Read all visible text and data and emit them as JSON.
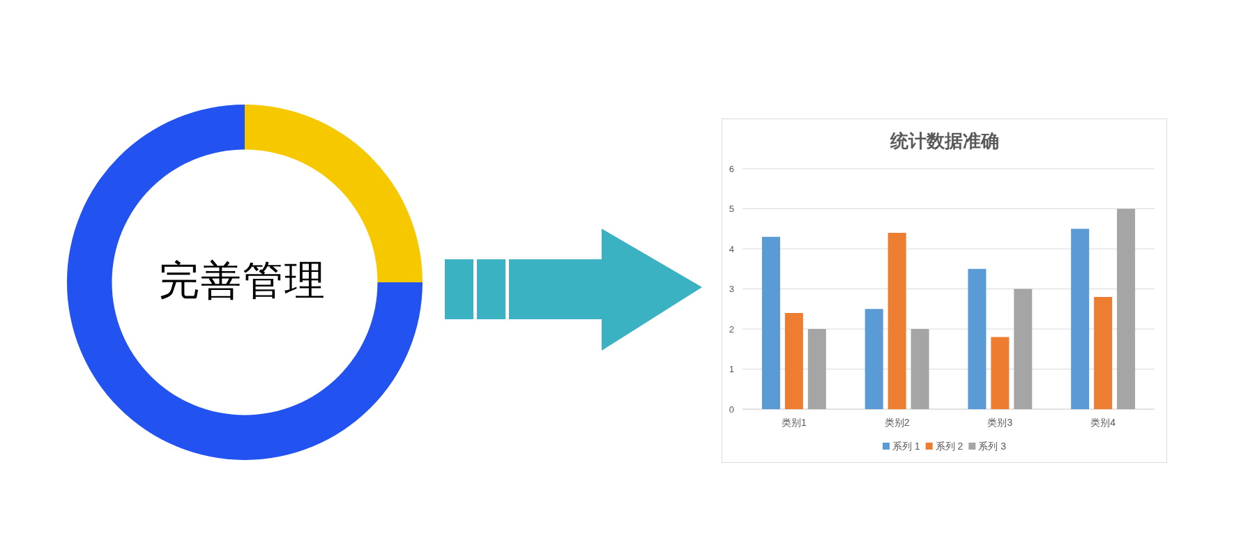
{
  "chart_data": [
    {
      "type": "donut",
      "title": "完善管理",
      "categories": [
        null,
        null,
        null,
        null
      ],
      "values": [
        25,
        25,
        25,
        25
      ],
      "colors": [
        "#f6c800",
        "#2253f0",
        "#2253f0",
        "#2253f0"
      ]
    },
    {
      "type": "bar",
      "title": "统计数据准确",
      "categories": [
        "类别1",
        "类别2",
        "类别3",
        "类别4"
      ],
      "series": [
        {
          "name": "系列 1",
          "color": "#5b9bd5",
          "values": [
            4.3,
            2.5,
            3.5,
            4.5
          ]
        },
        {
          "name": "系列 2",
          "color": "#ed7d31",
          "values": [
            2.4,
            4.4,
            1.8,
            2.8
          ]
        },
        {
          "name": "系列 3",
          "color": "#a5a5a5",
          "values": [
            2,
            2,
            3,
            5
          ]
        }
      ],
      "ylim": [
        0,
        6
      ],
      "yticks": [
        0,
        1,
        2,
        3,
        4,
        5,
        6
      ],
      "grid": "y",
      "legend": "bottom"
    }
  ]
}
